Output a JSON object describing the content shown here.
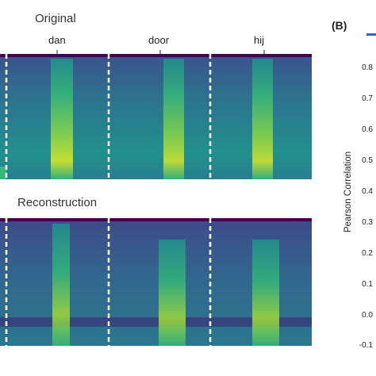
{
  "panel_a": {
    "original_title": "Original",
    "reconstruction_title": "Reconstruction",
    "words": [
      "dan",
      "door",
      "hij"
    ]
  },
  "panel_b": {
    "label": "(B)",
    "ylabel": "Pearson Correlation",
    "yticks": [
      "0.8",
      "0.7",
      "0.6",
      "0.5",
      "0.4",
      "0.3",
      "0.2",
      "0.1",
      "0.0",
      "-0.1"
    ],
    "accent_color": "#3a5fc2"
  },
  "chart_data": [
    {
      "type": "heatmap",
      "title": "Original",
      "annotations": [
        "dan",
        "door",
        "hij"
      ],
      "colormap": "viridis"
    },
    {
      "type": "heatmap",
      "title": "Reconstruction",
      "colormap": "viridis"
    },
    {
      "type": "line",
      "title": "",
      "xlabel": "",
      "ylabel": "Pearson Correlation",
      "ylim": [
        -0.1,
        0.8
      ],
      "series": []
    }
  ]
}
